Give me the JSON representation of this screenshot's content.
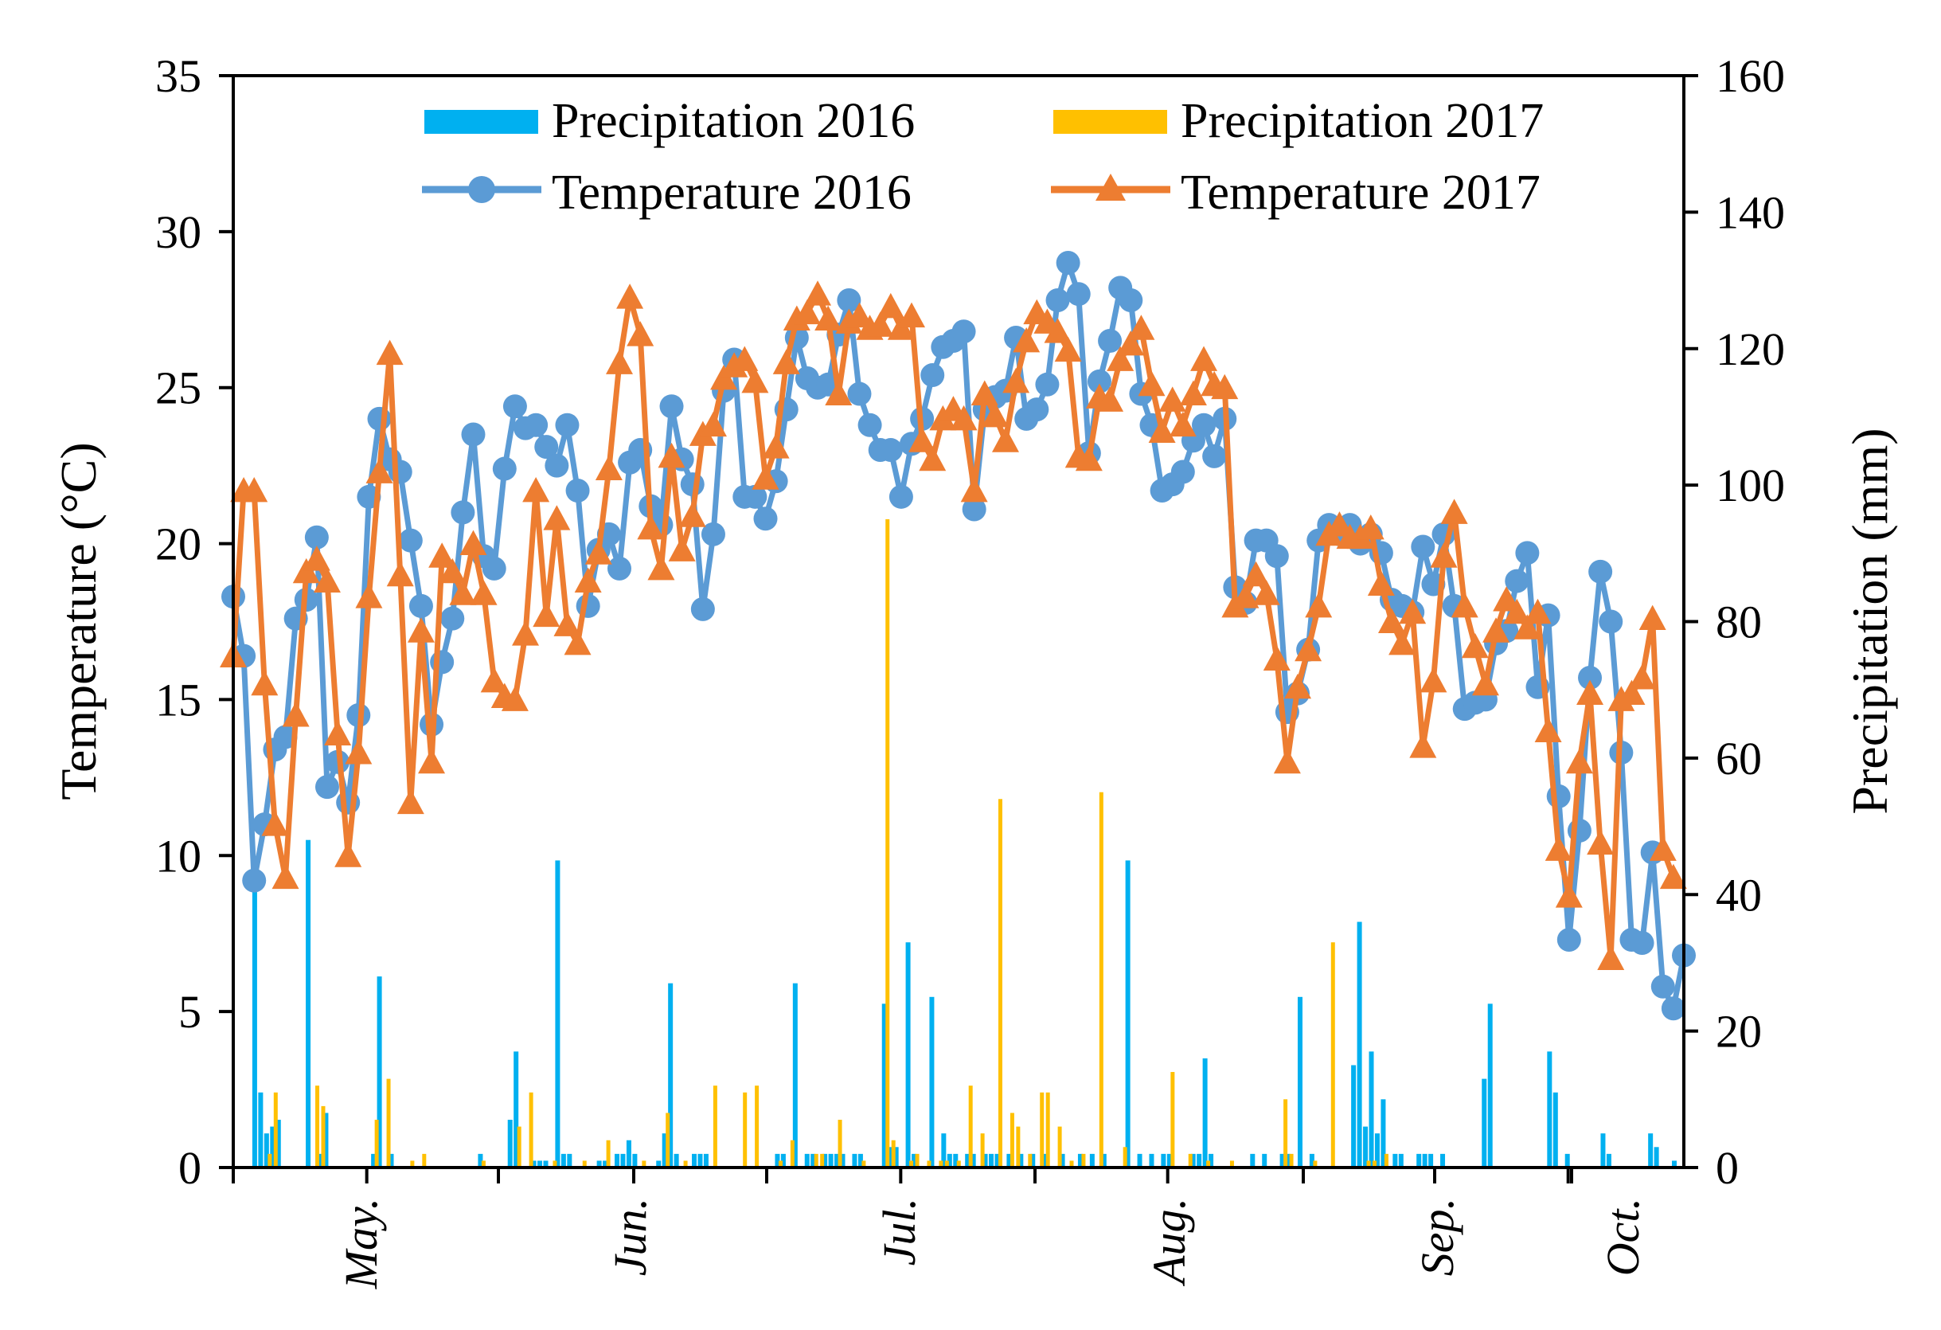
{
  "chart_data": {
    "type": "bar+line",
    "y_left": {
      "label": "Temperature (°C)",
      "lim": [
        0,
        35
      ],
      "ticks": [
        "0",
        "5",
        "10",
        "15",
        "20",
        "25",
        "30",
        "35"
      ]
    },
    "y_right": {
      "label": "Precipitation (mm)",
      "lim": [
        0,
        160
      ],
      "ticks": [
        "0",
        "20",
        "40",
        "60",
        "80",
        "100",
        "120",
        "140",
        "160"
      ]
    },
    "x": {
      "day_range": [
        0,
        163
      ],
      "month_boundaries": [
        15,
        45,
        75,
        105,
        135,
        150
      ],
      "months": [
        "May.",
        "Jun.",
        "Jul.",
        "Aug.",
        "Sep.",
        "Oct."
      ],
      "month_label_days": [
        15,
        46,
        76,
        107,
        139,
        156
      ]
    },
    "legend": {
      "precip_2016": "Precipitation 2016",
      "precip_2017": "Precipitation 2017",
      "temp_2016": "Temperature 2016",
      "temp_2017": "Temperature 2017"
    },
    "colors": {
      "p2016": "#00B0F0",
      "p2017": "#FFC000",
      "t2016": "#5B9BD5",
      "t2017": "#ED7D31"
    },
    "temperature_2016": [
      18.3,
      16.4,
      9.2,
      11.0,
      13.4,
      13.8,
      17.6,
      18.2,
      20.2,
      12.2,
      13.0,
      11.7,
      14.5,
      21.5,
      24.0,
      22.7,
      22.3,
      20.1,
      18.0,
      14.2,
      16.2,
      17.6,
      21.0,
      23.5,
      19.6,
      19.2,
      22.4,
      24.4,
      23.7,
      23.8,
      23.1,
      22.5,
      23.8,
      21.7,
      18.0,
      19.8,
      20.3,
      19.2,
      22.6,
      23.0,
      21.2,
      20.6,
      24.4,
      22.7,
      21.9,
      17.9,
      20.3,
      24.9,
      25.9,
      21.5,
      21.5,
      20.8,
      22.0,
      24.3,
      26.6,
      25.3,
      25.0,
      25.1,
      26.7,
      27.8,
      24.8,
      23.8,
      23.0,
      23.0,
      21.5,
      23.2,
      24.0,
      25.4,
      26.3,
      26.5,
      26.8,
      21.1,
      24.3,
      24.7,
      24.9,
      26.6,
      24.0,
      24.3,
      25.1,
      27.8,
      29.0,
      28.0,
      22.9,
      25.2,
      26.5,
      28.2,
      27.8,
      24.8,
      23.8,
      21.7,
      21.9,
      22.3,
      23.3,
      23.8,
      22.8,
      24.0,
      18.6,
      18.1,
      20.1,
      20.1,
      19.6,
      14.6,
      15.2,
      16.6,
      20.1,
      20.6,
      20.3,
      20.6,
      20.0,
      20.3,
      19.7,
      18.2,
      18.0,
      17.8,
      19.9,
      18.7,
      20.3,
      18.0,
      14.7,
      14.9,
      15.0,
      16.8,
      17.2,
      18.8,
      19.7,
      15.4,
      17.7,
      11.9,
      7.3,
      10.8,
      15.7,
      19.1,
      17.5,
      13.3,
      7.3,
      7.2,
      10.1,
      5.8,
      5.1,
      6.8
    ],
    "temperature_2017": [
      16.4,
      21.7,
      21.7,
      15.5,
      11.0,
      9.3,
      14.5,
      19.1,
      19.5,
      18.8,
      13.9,
      10.0,
      13.3,
      18.3,
      22.3,
      26.1,
      19.0,
      11.7,
      17.2,
      13.0,
      19.6,
      19.1,
      18.4,
      20.0,
      18.4,
      15.6,
      15.1,
      15.0,
      17.1,
      21.7,
      17.7,
      20.8,
      17.4,
      16.8,
      18.8,
      19.7,
      22.4,
      25.8,
      27.9,
      26.7,
      20.5,
      19.2,
      22.8,
      19.8,
      20.9,
      23.5,
      23.8,
      25.3,
      25.7,
      25.9,
      25.2,
      22.1,
      23.1,
      25.8,
      27.2,
      27.4,
      28.0,
      27.2,
      24.8,
      27.1,
      27.3,
      26.9,
      27.0,
      27.6,
      26.9,
      27.3,
      23.3,
      22.7,
      24.0,
      24.3,
      24.0,
      21.7,
      24.8,
      24.1,
      23.3,
      25.2,
      26.5,
      27.4,
      27.1,
      26.8,
      26.2,
      22.8,
      22.7,
      24.7,
      24.6,
      25.9,
      26.4,
      26.9,
      25.1,
      23.6,
      24.6,
      23.8,
      24.8,
      25.9,
      25.1,
      25.0,
      18.0,
      18.3,
      19.0,
      18.4,
      16.3,
      13.0,
      15.4,
      16.6,
      18.0,
      20.3,
      20.6,
      20.2,
      20.2,
      20.5,
      18.7,
      17.5,
      16.8,
      17.8,
      13.5,
      15.6,
      19.6,
      21.0,
      18.0,
      16.7,
      15.5,
      17.2,
      18.2,
      17.8,
      17.3,
      17.8,
      14.0,
      10.2,
      8.7,
      13.0,
      15.2,
      10.4,
      6.7,
      15.0,
      15.2,
      15.7,
      17.6,
      10.2,
      9.3
    ],
    "precipitation_2016": [
      [
        2,
        44
      ],
      [
        3,
        11
      ],
      [
        4,
        5
      ],
      [
        5,
        6
      ],
      [
        6,
        7
      ],
      [
        11,
        48
      ],
      [
        13,
        2
      ],
      [
        14,
        8
      ],
      [
        22,
        2
      ],
      [
        23,
        28
      ],
      [
        25,
        2
      ],
      [
        40,
        2
      ],
      [
        45,
        7
      ],
      [
        46,
        17
      ],
      [
        49,
        1
      ],
      [
        50,
        1
      ],
      [
        51,
        1
      ],
      [
        53,
        45
      ],
      [
        54,
        2
      ],
      [
        55,
        2
      ],
      [
        60,
        1
      ],
      [
        61,
        1
      ],
      [
        63,
        2
      ],
      [
        64,
        2
      ],
      [
        65,
        4
      ],
      [
        66,
        2
      ],
      [
        70,
        1
      ],
      [
        71,
        5
      ],
      [
        72,
        27
      ],
      [
        73,
        2
      ],
      [
        76,
        2
      ],
      [
        77,
        2
      ],
      [
        78,
        2
      ],
      [
        90,
        2
      ],
      [
        91,
        2
      ],
      [
        93,
        27
      ],
      [
        95,
        2
      ],
      [
        96,
        2
      ],
      [
        98,
        2
      ],
      [
        99,
        2
      ],
      [
        100,
        2
      ],
      [
        101,
        2
      ],
      [
        103,
        2
      ],
      [
        104,
        2
      ],
      [
        108,
        24
      ],
      [
        109,
        3
      ],
      [
        110,
        3
      ],
      [
        112,
        33
      ],
      [
        113,
        2
      ],
      [
        116,
        25
      ],
      [
        118,
        5
      ],
      [
        119,
        2
      ],
      [
        120,
        2
      ],
      [
        122,
        2
      ],
      [
        123,
        2
      ],
      [
        125,
        2
      ],
      [
        126,
        2
      ],
      [
        127,
        2
      ],
      [
        129,
        2
      ],
      [
        131,
        2
      ],
      [
        133,
        2
      ],
      [
        135,
        2
      ],
      [
        138,
        2
      ],
      [
        141,
        2
      ],
      [
        143,
        2
      ],
      [
        145,
        2
      ],
      [
        149,
        45
      ],
      [
        151,
        2
      ],
      [
        153,
        2
      ],
      [
        155,
        2
      ],
      [
        156,
        2
      ],
      [
        160,
        2
      ],
      [
        161,
        2
      ],
      [
        162,
        16
      ],
      [
        163,
        2
      ],
      [
        170,
        2
      ],
      [
        172,
        2
      ],
      [
        175,
        2
      ],
      [
        176,
        2
      ],
      [
        178,
        25
      ],
      [
        180,
        2
      ],
      [
        187,
        15
      ],
      [
        188,
        36
      ],
      [
        189,
        6
      ],
      [
        190,
        17
      ],
      [
        191,
        5
      ],
      [
        192,
        10
      ],
      [
        194,
        2
      ],
      [
        195,
        2
      ],
      [
        198,
        2
      ],
      [
        199,
        2
      ],
      [
        200,
        2
      ],
      [
        202,
        2
      ],
      [
        209,
        13
      ],
      [
        210,
        24
      ],
      [
        220,
        17
      ],
      [
        221,
        11
      ],
      [
        223,
        2
      ],
      [
        229,
        5
      ],
      [
        230,
        2
      ],
      [
        237,
        5
      ],
      [
        238,
        3
      ],
      [
        241,
        1
      ]
    ],
    "precipitation_2016_note": "pairs are [x_position_index, mm]; x index scaled to day axis by script",
    "precipitation_2017": [
      [
        4,
        2
      ],
      [
        5,
        11
      ],
      [
        12,
        12
      ],
      [
        13,
        9
      ],
      [
        22,
        7
      ],
      [
        24,
        13
      ],
      [
        28,
        1
      ],
      [
        30,
        2
      ],
      [
        40,
        1
      ],
      [
        46,
        6
      ],
      [
        48,
        11
      ],
      [
        52,
        1
      ],
      [
        57,
        1
      ],
      [
        61,
        4
      ],
      [
        67,
        1
      ],
      [
        71,
        8
      ],
      [
        74,
        1
      ],
      [
        79,
        12
      ],
      [
        84,
        11
      ],
      [
        86,
        12
      ],
      [
        90,
        1
      ],
      [
        92,
        4
      ],
      [
        96,
        2
      ],
      [
        97,
        2
      ],
      [
        100,
        7
      ],
      [
        104,
        1
      ],
      [
        108,
        95
      ],
      [
        109,
        4
      ],
      [
        112,
        1
      ],
      [
        113,
        2
      ],
      [
        115,
        1
      ],
      [
        117,
        1
      ],
      [
        118,
        1
      ],
      [
        120,
        1
      ],
      [
        122,
        12
      ],
      [
        124,
        5
      ],
      [
        127,
        54
      ],
      [
        129,
        8
      ],
      [
        130,
        6
      ],
      [
        132,
        2
      ],
      [
        134,
        11
      ],
      [
        135,
        11
      ],
      [
        137,
        6
      ],
      [
        139,
        1
      ],
      [
        141,
        2
      ],
      [
        144,
        55
      ],
      [
        148,
        3
      ],
      [
        156,
        14
      ],
      [
        159,
        2
      ],
      [
        162,
        1
      ],
      [
        166,
        1
      ],
      [
        175,
        10
      ],
      [
        176,
        2
      ],
      [
        180,
        1
      ],
      [
        183,
        33
      ],
      [
        189,
        1
      ],
      [
        190,
        1
      ],
      [
        192,
        2
      ]
    ]
  }
}
